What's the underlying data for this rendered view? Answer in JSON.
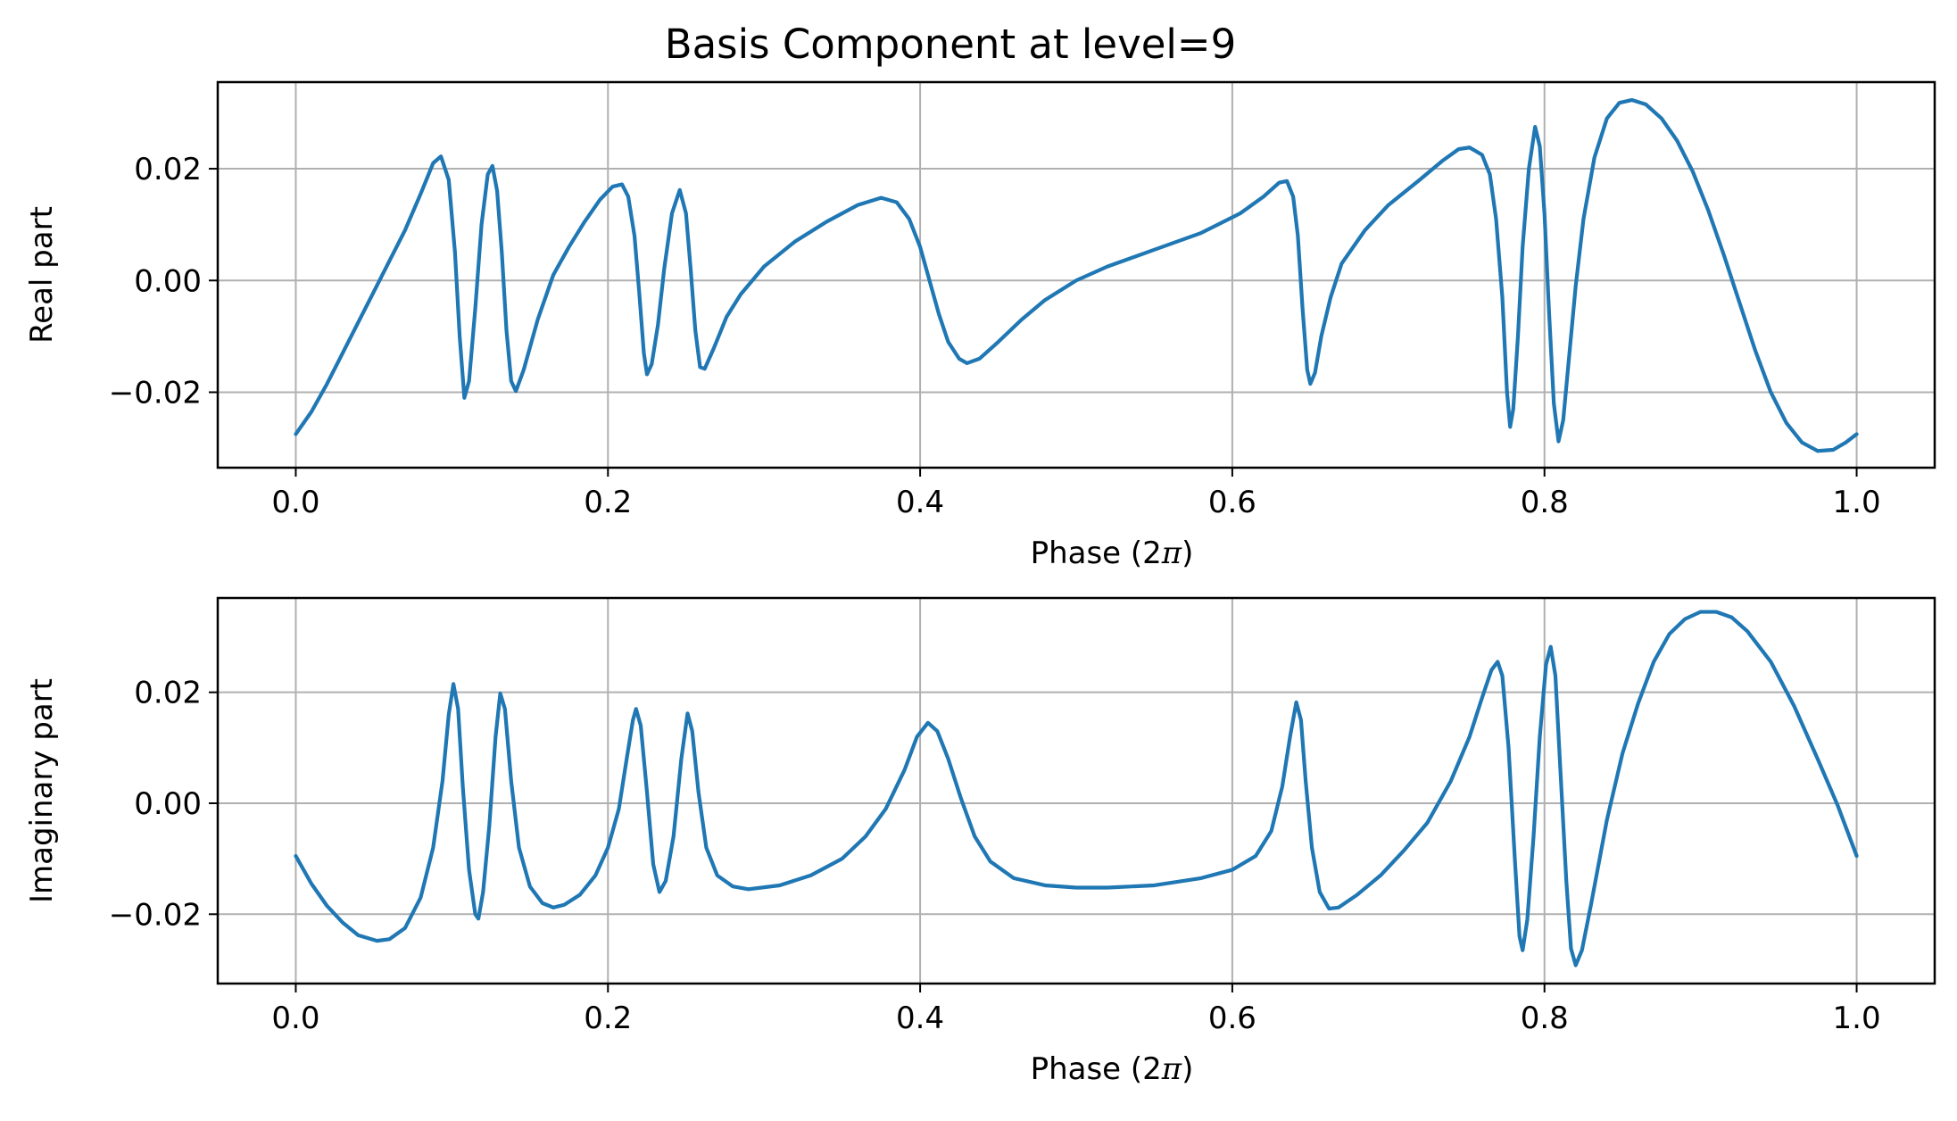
{
  "chart_data": {
    "type": "line",
    "title": "Basis Component at level=9",
    "line_color": "#1f77b4",
    "grid": true,
    "subplots": [
      {
        "id": "real",
        "ylabel": "Real part",
        "xlabel_main": "Phase (2",
        "xlabel_symbol": "π",
        "xlabel_end": ")",
        "xlim": [
          -0.05,
          1.05
        ],
        "ylim": [
          -0.0335,
          0.0355
        ],
        "xticks": [
          0.0,
          0.2,
          0.4,
          0.6,
          0.8,
          1.0
        ],
        "xtick_labels": [
          "0.0",
          "0.2",
          "0.4",
          "0.6",
          "0.8",
          "1.0"
        ],
        "yticks": [
          -0.02,
          0.0,
          0.02
        ],
        "ytick_labels": [
          "−0.02",
          "0.00",
          "0.02"
        ],
        "points": [
          [
            0.0,
            -0.0275
          ],
          [
            0.01,
            -0.0235
          ],
          [
            0.02,
            -0.0185
          ],
          [
            0.03,
            -0.013
          ],
          [
            0.04,
            -0.0075
          ],
          [
            0.05,
            -0.002
          ],
          [
            0.06,
            0.0035
          ],
          [
            0.07,
            0.009
          ],
          [
            0.08,
            0.0155
          ],
          [
            0.088,
            0.021
          ],
          [
            0.093,
            0.0222
          ],
          [
            0.098,
            0.018
          ],
          [
            0.102,
            0.005
          ],
          [
            0.105,
            -0.01
          ],
          [
            0.108,
            -0.021
          ],
          [
            0.111,
            -0.018
          ],
          [
            0.115,
            -0.005
          ],
          [
            0.119,
            0.01
          ],
          [
            0.123,
            0.019
          ],
          [
            0.126,
            0.0205
          ],
          [
            0.129,
            0.016
          ],
          [
            0.132,
            0.005
          ],
          [
            0.135,
            -0.009
          ],
          [
            0.138,
            -0.018
          ],
          [
            0.141,
            -0.0198
          ],
          [
            0.146,
            -0.016
          ],
          [
            0.155,
            -0.007
          ],
          [
            0.165,
            0.001
          ],
          [
            0.175,
            0.006
          ],
          [
            0.185,
            0.0105
          ],
          [
            0.195,
            0.0145
          ],
          [
            0.203,
            0.0168
          ],
          [
            0.209,
            0.0172
          ],
          [
            0.213,
            0.015
          ],
          [
            0.217,
            0.008
          ],
          [
            0.22,
            -0.002
          ],
          [
            0.223,
            -0.013
          ],
          [
            0.225,
            -0.0168
          ],
          [
            0.228,
            -0.015
          ],
          [
            0.232,
            -0.008
          ],
          [
            0.236,
            0.002
          ],
          [
            0.241,
            0.012
          ],
          [
            0.246,
            0.0162
          ],
          [
            0.25,
            0.012
          ],
          [
            0.253,
            0.002
          ],
          [
            0.256,
            -0.009
          ],
          [
            0.259,
            -0.0155
          ],
          [
            0.262,
            -0.0158
          ],
          [
            0.268,
            -0.012
          ],
          [
            0.276,
            -0.0065
          ],
          [
            0.285,
            -0.0025
          ],
          [
            0.3,
            0.0025
          ],
          [
            0.32,
            0.007
          ],
          [
            0.34,
            0.0105
          ],
          [
            0.36,
            0.0135
          ],
          [
            0.375,
            0.0148
          ],
          [
            0.385,
            0.014
          ],
          [
            0.393,
            0.011
          ],
          [
            0.4,
            0.006
          ],
          [
            0.406,
            0.0
          ],
          [
            0.412,
            -0.006
          ],
          [
            0.418,
            -0.011
          ],
          [
            0.425,
            -0.014
          ],
          [
            0.43,
            -0.0148
          ],
          [
            0.438,
            -0.014
          ],
          [
            0.45,
            -0.011
          ],
          [
            0.465,
            -0.007
          ],
          [
            0.48,
            -0.0035
          ],
          [
            0.5,
            0.0
          ],
          [
            0.52,
            0.0025
          ],
          [
            0.55,
            0.0055
          ],
          [
            0.58,
            0.0085
          ],
          [
            0.605,
            0.012
          ],
          [
            0.62,
            0.015
          ],
          [
            0.63,
            0.0175
          ],
          [
            0.635,
            0.0178
          ],
          [
            0.639,
            0.015
          ],
          [
            0.642,
            0.008
          ],
          [
            0.645,
            -0.005
          ],
          [
            0.648,
            -0.016
          ],
          [
            0.65,
            -0.0185
          ],
          [
            0.653,
            -0.0165
          ],
          [
            0.657,
            -0.01
          ],
          [
            0.663,
            -0.003
          ],
          [
            0.67,
            0.003
          ],
          [
            0.685,
            0.009
          ],
          [
            0.7,
            0.0135
          ],
          [
            0.72,
            0.018
          ],
          [
            0.735,
            0.0215
          ],
          [
            0.745,
            0.0235
          ],
          [
            0.752,
            0.0238
          ],
          [
            0.76,
            0.0225
          ],
          [
            0.765,
            0.019
          ],
          [
            0.769,
            0.011
          ],
          [
            0.773,
            -0.003
          ],
          [
            0.776,
            -0.02
          ],
          [
            0.778,
            -0.0262
          ],
          [
            0.78,
            -0.023
          ],
          [
            0.783,
            -0.01
          ],
          [
            0.786,
            0.006
          ],
          [
            0.79,
            0.02
          ],
          [
            0.794,
            0.0275
          ],
          [
            0.797,
            0.024
          ],
          [
            0.8,
            0.012
          ],
          [
            0.803,
            -0.006
          ],
          [
            0.806,
            -0.022
          ],
          [
            0.809,
            -0.0288
          ],
          [
            0.812,
            -0.025
          ],
          [
            0.816,
            -0.013
          ],
          [
            0.82,
            -0.001
          ],
          [
            0.825,
            0.011
          ],
          [
            0.832,
            0.022
          ],
          [
            0.84,
            0.029
          ],
          [
            0.848,
            0.0318
          ],
          [
            0.856,
            0.0323
          ],
          [
            0.865,
            0.0315
          ],
          [
            0.875,
            0.029
          ],
          [
            0.885,
            0.025
          ],
          [
            0.895,
            0.0195
          ],
          [
            0.905,
            0.0125
          ],
          [
            0.915,
            0.0045
          ],
          [
            0.925,
            -0.004
          ],
          [
            0.935,
            -0.0125
          ],
          [
            0.945,
            -0.02
          ],
          [
            0.955,
            -0.0255
          ],
          [
            0.965,
            -0.029
          ],
          [
            0.975,
            -0.0305
          ],
          [
            0.985,
            -0.0303
          ],
          [
            0.993,
            -0.029
          ],
          [
            1.0,
            -0.0275
          ]
        ]
      },
      {
        "id": "imag",
        "ylabel": "Imaginary part",
        "xlabel_main": "Phase (2",
        "xlabel_symbol": "π",
        "xlabel_end": ")",
        "xlim": [
          -0.05,
          1.05
        ],
        "ylim": [
          -0.0325,
          0.037
        ],
        "xticks": [
          0.0,
          0.2,
          0.4,
          0.6,
          0.8,
          1.0
        ],
        "xtick_labels": [
          "0.0",
          "0.2",
          "0.4",
          "0.6",
          "0.8",
          "1.0"
        ],
        "yticks": [
          -0.02,
          0.0,
          0.02
        ],
        "ytick_labels": [
          "−0.02",
          "0.00",
          "0.02"
        ],
        "points": [
          [
            0.0,
            -0.0095
          ],
          [
            0.01,
            -0.0145
          ],
          [
            0.02,
            -0.0185
          ],
          [
            0.03,
            -0.0215
          ],
          [
            0.04,
            -0.0238
          ],
          [
            0.052,
            -0.0248
          ],
          [
            0.06,
            -0.0245
          ],
          [
            0.07,
            -0.0225
          ],
          [
            0.08,
            -0.017
          ],
          [
            0.088,
            -0.008
          ],
          [
            0.094,
            0.004
          ],
          [
            0.098,
            0.016
          ],
          [
            0.101,
            0.0215
          ],
          [
            0.104,
            0.017
          ],
          [
            0.107,
            0.003
          ],
          [
            0.111,
            -0.012
          ],
          [
            0.115,
            -0.02
          ],
          [
            0.117,
            -0.0208
          ],
          [
            0.12,
            -0.016
          ],
          [
            0.124,
            -0.004
          ],
          [
            0.128,
            0.012
          ],
          [
            0.131,
            0.0198
          ],
          [
            0.134,
            0.017
          ],
          [
            0.138,
            0.004
          ],
          [
            0.143,
            -0.008
          ],
          [
            0.15,
            -0.015
          ],
          [
            0.158,
            -0.018
          ],
          [
            0.165,
            -0.0188
          ],
          [
            0.172,
            -0.0183
          ],
          [
            0.182,
            -0.0165
          ],
          [
            0.192,
            -0.013
          ],
          [
            0.2,
            -0.008
          ],
          [
            0.207,
            -0.001
          ],
          [
            0.212,
            0.008
          ],
          [
            0.216,
            0.015
          ],
          [
            0.218,
            0.017
          ],
          [
            0.221,
            0.014
          ],
          [
            0.225,
            0.002
          ],
          [
            0.229,
            -0.011
          ],
          [
            0.233,
            -0.016
          ],
          [
            0.237,
            -0.014
          ],
          [
            0.242,
            -0.006
          ],
          [
            0.247,
            0.008
          ],
          [
            0.251,
            0.0162
          ],
          [
            0.254,
            0.013
          ],
          [
            0.258,
            0.002
          ],
          [
            0.263,
            -0.008
          ],
          [
            0.27,
            -0.013
          ],
          [
            0.28,
            -0.015
          ],
          [
            0.29,
            -0.0155
          ],
          [
            0.31,
            -0.0148
          ],
          [
            0.33,
            -0.013
          ],
          [
            0.35,
            -0.01
          ],
          [
            0.365,
            -0.006
          ],
          [
            0.378,
            -0.001
          ],
          [
            0.39,
            0.006
          ],
          [
            0.398,
            0.012
          ],
          [
            0.405,
            0.0145
          ],
          [
            0.411,
            0.013
          ],
          [
            0.418,
            0.008
          ],
          [
            0.426,
            0.001
          ],
          [
            0.435,
            -0.006
          ],
          [
            0.445,
            -0.0105
          ],
          [
            0.46,
            -0.0135
          ],
          [
            0.48,
            -0.0148
          ],
          [
            0.5,
            -0.0152
          ],
          [
            0.52,
            -0.0152
          ],
          [
            0.55,
            -0.0148
          ],
          [
            0.58,
            -0.0135
          ],
          [
            0.6,
            -0.012
          ],
          [
            0.615,
            -0.0095
          ],
          [
            0.625,
            -0.005
          ],
          [
            0.632,
            0.003
          ],
          [
            0.637,
            0.012
          ],
          [
            0.641,
            0.0182
          ],
          [
            0.644,
            0.015
          ],
          [
            0.647,
            0.004
          ],
          [
            0.651,
            -0.008
          ],
          [
            0.656,
            -0.016
          ],
          [
            0.662,
            -0.019
          ],
          [
            0.668,
            -0.0188
          ],
          [
            0.68,
            -0.0165
          ],
          [
            0.695,
            -0.013
          ],
          [
            0.71,
            -0.0085
          ],
          [
            0.725,
            -0.0035
          ],
          [
            0.74,
            0.004
          ],
          [
            0.752,
            0.012
          ],
          [
            0.76,
            0.019
          ],
          [
            0.766,
            0.024
          ],
          [
            0.77,
            0.0255
          ],
          [
            0.773,
            0.023
          ],
          [
            0.777,
            0.01
          ],
          [
            0.781,
            -0.01
          ],
          [
            0.784,
            -0.024
          ],
          [
            0.786,
            -0.0265
          ],
          [
            0.789,
            -0.021
          ],
          [
            0.793,
            -0.006
          ],
          [
            0.797,
            0.012
          ],
          [
            0.801,
            0.025
          ],
          [
            0.804,
            0.0282
          ],
          [
            0.807,
            0.023
          ],
          [
            0.81,
            0.007
          ],
          [
            0.814,
            -0.014
          ],
          [
            0.817,
            -0.0262
          ],
          [
            0.82,
            -0.0292
          ],
          [
            0.824,
            -0.0265
          ],
          [
            0.83,
            -0.018
          ],
          [
            0.84,
            -0.003
          ],
          [
            0.85,
            0.009
          ],
          [
            0.86,
            0.018
          ],
          [
            0.87,
            0.0255
          ],
          [
            0.88,
            0.0305
          ],
          [
            0.89,
            0.0332
          ],
          [
            0.9,
            0.0345
          ],
          [
            0.91,
            0.0345
          ],
          [
            0.92,
            0.0335
          ],
          [
            0.93,
            0.031
          ],
          [
            0.945,
            0.0255
          ],
          [
            0.96,
            0.0175
          ],
          [
            0.975,
            0.008
          ],
          [
            0.988,
            -0.0005
          ],
          [
            1.0,
            -0.0095
          ]
        ]
      }
    ]
  }
}
